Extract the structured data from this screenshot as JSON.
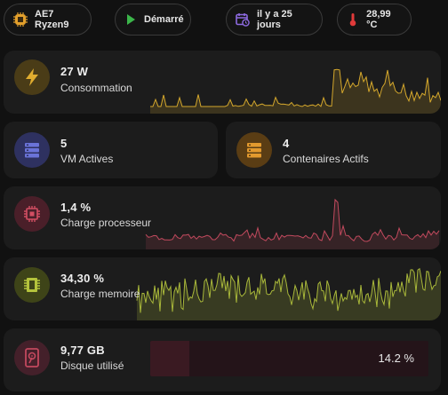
{
  "chips": [
    {
      "label": "AE7 Ryzen9",
      "icon": "chip-icon"
    },
    {
      "label": "Démarré",
      "icon": "play-icon"
    },
    {
      "label": "il y a 25 jours",
      "icon": "calendar-clock-icon"
    },
    {
      "label": "28,99 °C",
      "icon": "thermometer-icon"
    }
  ],
  "power": {
    "value": "27 W",
    "label": "Consommation",
    "icon": "flash-icon",
    "color": "#d4a72c"
  },
  "vm": {
    "value": "5",
    "label": "VM Actives",
    "icon": "server-icon",
    "color": "#6a73d8"
  },
  "containers": {
    "value": "4",
    "label": "Contenaires Actifs",
    "icon": "server-stack-icon",
    "color": "#e39a2e"
  },
  "cpu": {
    "value": "1,4 %",
    "label": "Charge processeur",
    "icon": "cpu-icon",
    "color": "#c24a5e"
  },
  "memory": {
    "value": "34,30 %",
    "label": "Charge memoire",
    "icon": "memory-icon",
    "color": "#a9b83a"
  },
  "disk": {
    "value": "9,77 GB",
    "label": "Disque utilisé",
    "icon": "harddisk-icon",
    "color": "#c2485e",
    "percent": "14.2 %",
    "fraction": 0.142
  }
}
